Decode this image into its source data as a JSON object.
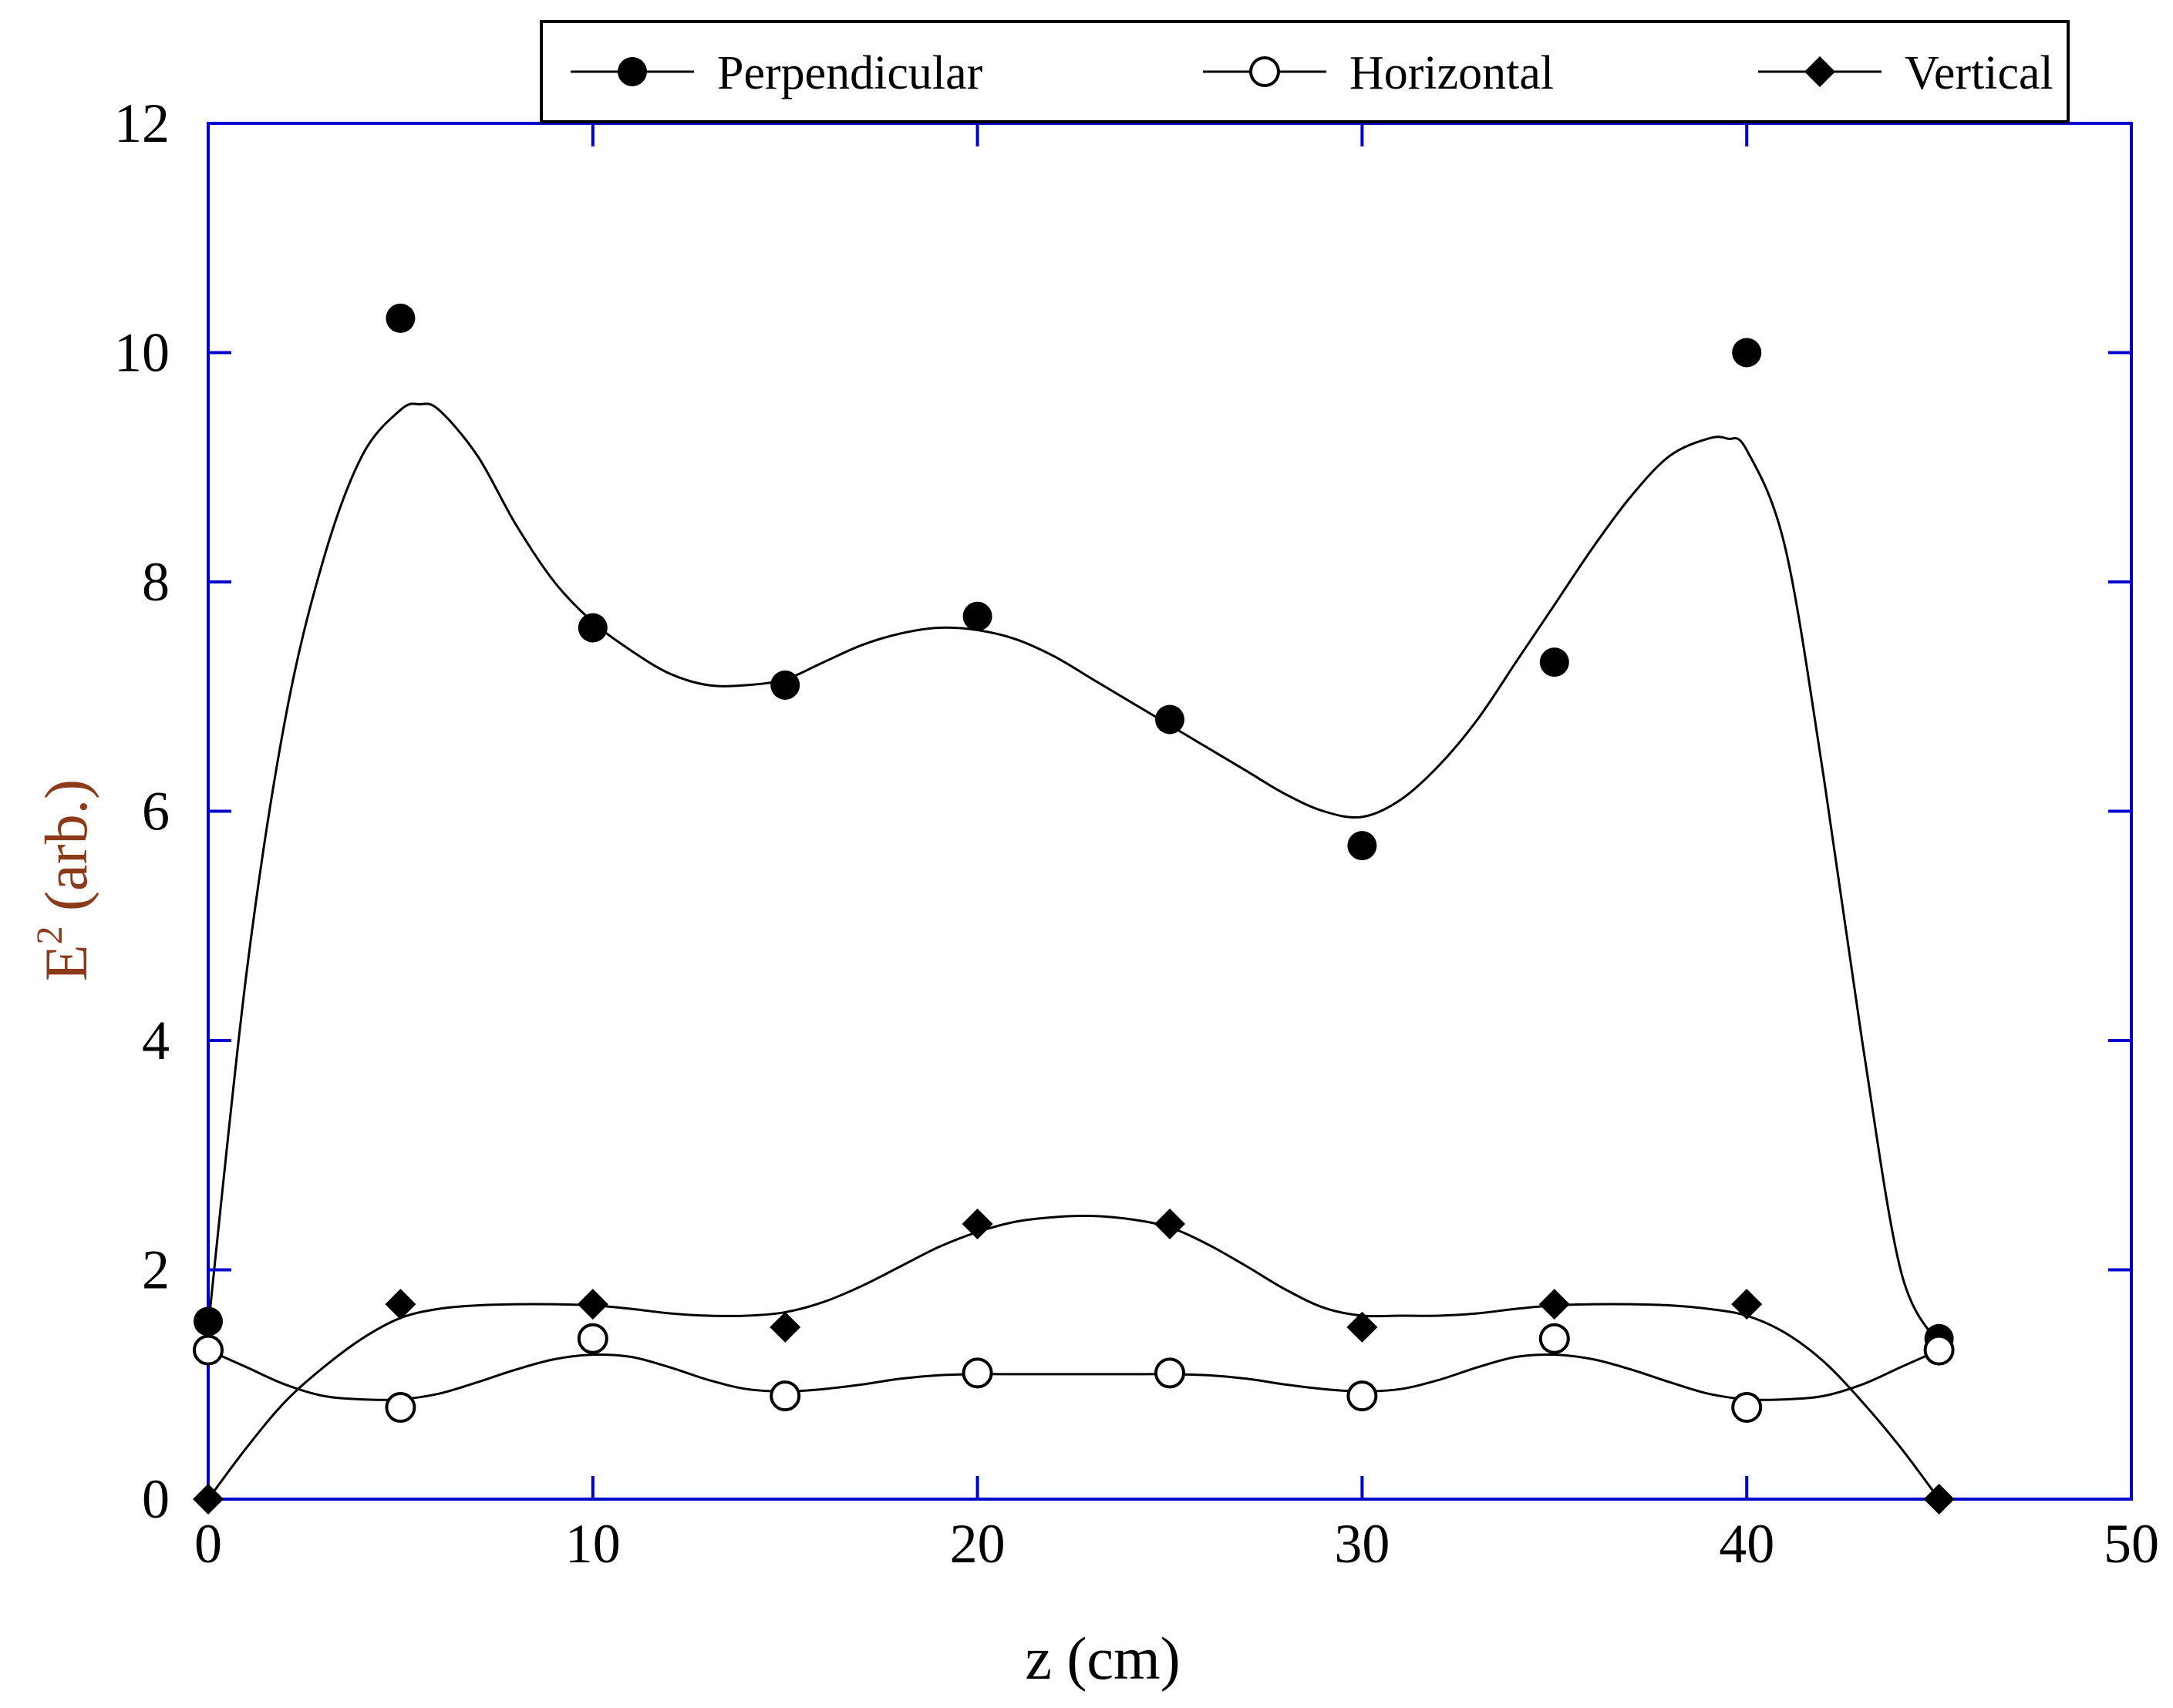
{
  "chart_data": {
    "type": "scatter",
    "title": "",
    "xlabel": "z (cm)",
    "ylabel_main": "E",
    "ylabel_sup": "2",
    "ylabel_rest": " (arb.)",
    "xlim": [
      0,
      50
    ],
    "ylim": [
      0,
      12
    ],
    "x_ticks": [
      0,
      10,
      20,
      30,
      40,
      50
    ],
    "y_ticks": [
      0,
      2,
      4,
      6,
      8,
      10,
      12
    ],
    "grid": false,
    "legend_position": "top",
    "colors": {
      "frame": "#0000cc",
      "ylabel": "#8b3a1a",
      "marker": "#000000",
      "line": "#000000"
    },
    "series": [
      {
        "name": "Perpendicular",
        "marker": "filled-circle",
        "x": [
          0,
          5,
          10,
          15,
          20,
          25,
          30,
          35,
          40,
          45
        ],
        "values": [
          1.55,
          10.3,
          7.6,
          7.1,
          7.7,
          6.8,
          5.7,
          7.3,
          10.0,
          1.4
        ],
        "fit_x": [
          0,
          1,
          2,
          3,
          4,
          5,
          5.5,
          6,
          7,
          8,
          9,
          10,
          11,
          12,
          13,
          14,
          15,
          16,
          17,
          18,
          19,
          20,
          21,
          22,
          23,
          24,
          25,
          26,
          27,
          28,
          29,
          30,
          31,
          32,
          33,
          34,
          35,
          36,
          37,
          38,
          39,
          39.5,
          40,
          41,
          42,
          43,
          44,
          45
        ],
        "fit_y": [
          1.5,
          4.6,
          6.8,
          8.2,
          9.1,
          9.5,
          9.55,
          9.5,
          9.1,
          8.5,
          8.0,
          7.65,
          7.4,
          7.2,
          7.1,
          7.1,
          7.15,
          7.3,
          7.45,
          7.55,
          7.6,
          7.58,
          7.5,
          7.35,
          7.15,
          6.95,
          6.75,
          6.55,
          6.35,
          6.15,
          6.0,
          5.95,
          6.1,
          6.4,
          6.8,
          7.3,
          7.8,
          8.3,
          8.75,
          9.1,
          9.25,
          9.25,
          9.15,
          8.3,
          6.3,
          4.0,
          2.0,
          1.35
        ]
      },
      {
        "name": "Horizontal",
        "marker": "open-circle",
        "x": [
          0,
          5,
          10,
          15,
          20,
          25,
          30,
          35,
          40,
          45
        ],
        "values": [
          1.3,
          0.8,
          1.4,
          0.9,
          1.1,
          1.1,
          0.9,
          1.4,
          0.8,
          1.3
        ],
        "fit_x": [
          0,
          1,
          2,
          3,
          4,
          5,
          6,
          7,
          8,
          9,
          10,
          11,
          12,
          13,
          14,
          15,
          16,
          17,
          18,
          19,
          20,
          21,
          22,
          23,
          24,
          25,
          26,
          27,
          28,
          29,
          30,
          31,
          32,
          33,
          34,
          35,
          36,
          37,
          38,
          39,
          40,
          41,
          42,
          43,
          44,
          45
        ],
        "fit_y": [
          1.3,
          1.15,
          1.0,
          0.9,
          0.87,
          0.87,
          0.92,
          1.02,
          1.13,
          1.22,
          1.26,
          1.24,
          1.15,
          1.04,
          0.96,
          0.94,
          0.96,
          1.0,
          1.05,
          1.08,
          1.09,
          1.09,
          1.09,
          1.09,
          1.09,
          1.09,
          1.08,
          1.05,
          1.0,
          0.96,
          0.94,
          0.96,
          1.04,
          1.15,
          1.24,
          1.26,
          1.22,
          1.13,
          1.02,
          0.92,
          0.87,
          0.87,
          0.9,
          1.0,
          1.15,
          1.3
        ]
      },
      {
        "name": "Vertical",
        "marker": "filled-diamond",
        "x": [
          0,
          5,
          10,
          15,
          20,
          25,
          30,
          35,
          40,
          45
        ],
        "values": [
          0,
          1.7,
          1.7,
          1.5,
          2.4,
          2.4,
          1.5,
          1.7,
          1.7,
          0
        ],
        "fit_x": [
          0,
          1,
          2,
          3,
          4,
          5,
          6,
          7,
          8,
          9,
          10,
          11,
          12,
          13,
          14,
          15,
          16,
          17,
          18,
          19,
          20,
          21,
          22,
          23,
          24,
          25,
          26,
          27,
          28,
          29,
          30,
          31,
          32,
          33,
          34,
          35,
          36,
          37,
          38,
          39,
          40,
          41,
          42,
          43,
          44,
          45
        ],
        "fit_y": [
          0,
          0.45,
          0.85,
          1.15,
          1.4,
          1.58,
          1.66,
          1.69,
          1.7,
          1.7,
          1.69,
          1.66,
          1.62,
          1.6,
          1.6,
          1.63,
          1.72,
          1.86,
          2.03,
          2.2,
          2.33,
          2.42,
          2.46,
          2.47,
          2.44,
          2.37,
          2.22,
          2.03,
          1.83,
          1.67,
          1.6,
          1.6,
          1.6,
          1.62,
          1.66,
          1.69,
          1.7,
          1.7,
          1.69,
          1.66,
          1.6,
          1.45,
          1.2,
          0.85,
          0.45,
          0
        ]
      }
    ]
  }
}
